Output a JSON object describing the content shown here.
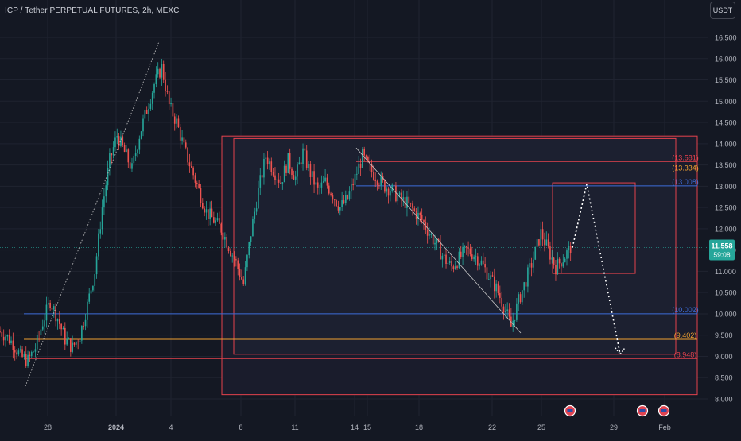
{
  "header": {
    "title": "ICP / Tether PERPETUAL FUTURES, 2h, MEXC",
    "currency": "USDT"
  },
  "price": {
    "last": "11.558",
    "countdown": "59:08"
  },
  "colors": {
    "background": "#141823",
    "bull": "#26a69a",
    "bear": "#ef5350",
    "red_level": "#e5424d",
    "orange_level": "#f0a030",
    "blue_level": "#3d6dd9",
    "axis_text": "#b2b5be",
    "price_tag": "#26a69a"
  },
  "chart_data": {
    "type": "candlestick",
    "title": "ICP / Tether PERPETUAL FUTURES, 2h, MEXC",
    "ylim": [
      7.8,
      16.8
    ],
    "y_ticks": [
      "16.500",
      "16.000",
      "15.500",
      "15.000",
      "14.500",
      "14.000",
      "13.500",
      "13.000",
      "12.500",
      "12.000",
      "11.500",
      "11.000",
      "10.500",
      "10.000",
      "9.500",
      "9.000",
      "8.500",
      "8.000"
    ],
    "x_ticks": [
      "28",
      "2024",
      "4",
      "8",
      "11",
      "14",
      "15",
      "18",
      "22",
      "25",
      "29",
      "Feb"
    ],
    "grid": true,
    "levels": [
      {
        "label": "(13.581)",
        "value": 13.581,
        "color": "red"
      },
      {
        "label": "(13.334)",
        "value": 13.334,
        "color": "orange"
      },
      {
        "label": "(13.008)",
        "value": 13.008,
        "color": "blue"
      },
      {
        "label": "(10.002)",
        "value": 10.002,
        "color": "blue"
      },
      {
        "label": "(9.402)",
        "value": 9.402,
        "color": "orange"
      },
      {
        "label": "(8.948)",
        "value": 8.948,
        "color": "red"
      }
    ],
    "price_path_closes": [
      9.6,
      9.5,
      9.3,
      9.0,
      8.9,
      9.2,
      9.8,
      10.3,
      9.9,
      9.4,
      9.2,
      9.5,
      10.2,
      11.0,
      12.5,
      13.6,
      14.2,
      13.8,
      13.4,
      14.2,
      14.8,
      15.4,
      15.8,
      14.9,
      14.5,
      13.9,
      13.4,
      12.9,
      12.4,
      12.2,
      12.0,
      11.6,
      11.2,
      10.7,
      11.9,
      12.9,
      13.7,
      13.4,
      13.1,
      13.6,
      13.2,
      13.8,
      13.3,
      12.9,
      13.1,
      12.8,
      12.5,
      12.7,
      13.2,
      13.7,
      13.4,
      13.2,
      13.0,
      12.9,
      12.7,
      12.6,
      12.4,
      12.2,
      11.9,
      11.6,
      11.3,
      11.1,
      11.3,
      11.5,
      11.4,
      11.2,
      10.9,
      10.6,
      10.2,
      9.7,
      10.3,
      10.8,
      11.3,
      11.9,
      11.5,
      11.1,
      11.3,
      11.558
    ],
    "projection": [
      11.558,
      13.05,
      9.05
    ],
    "events": [
      "flag",
      "flag",
      "flag"
    ]
  }
}
